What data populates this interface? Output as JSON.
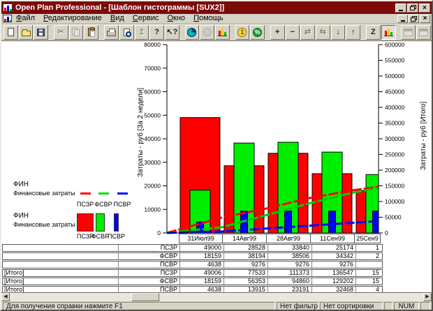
{
  "window": {
    "title": "Open Plan Professional - [Шаблон гистограммы [SUX2]]",
    "controls": {
      "minimize": "",
      "restore": "",
      "close": "×"
    }
  },
  "menu": {
    "items": [
      {
        "name": "menu-file",
        "label": "Файл"
      },
      {
        "name": "menu-edit",
        "label": "Редактирование"
      },
      {
        "name": "menu-view",
        "label": "Вид"
      },
      {
        "name": "menu-service",
        "label": "Сервис"
      },
      {
        "name": "menu-window",
        "label": "Окно"
      },
      {
        "name": "menu-help",
        "label": "Помощь"
      }
    ]
  },
  "toolbar": {
    "groups": [
      [
        {
          "name": "new-button",
          "icon": "page"
        },
        {
          "name": "open-button",
          "icon": "folder"
        },
        {
          "name": "save-button",
          "icon": "floppy"
        }
      ],
      [
        {
          "name": "cut-button",
          "glyph": "✂",
          "disabled": true
        },
        {
          "name": "copy-button",
          "icon": "copy",
          "disabled": true
        },
        {
          "name": "paste-button",
          "icon": "paste"
        }
      ],
      [
        {
          "name": "print-button",
          "icon": "printer"
        },
        {
          "name": "print-preview-button",
          "icon": "preview"
        },
        {
          "name": "levels-button",
          "glyph": "↥",
          "disabled": true
        },
        {
          "name": "help-button",
          "glyph": "?"
        },
        {
          "name": "context-help-button",
          "glyph": "↖?"
        }
      ],
      [
        {
          "name": "time-analysis-button",
          "icon": "clock"
        },
        {
          "name": "resource-button",
          "icon": "circle",
          "disabled": true
        },
        {
          "name": "histogram-button",
          "icon": "bars"
        }
      ],
      [
        {
          "name": "cost-button",
          "icon": "coin",
          "glyph": "1"
        },
        {
          "name": "percent-button",
          "icon": "percent",
          "glyph": "%"
        }
      ],
      [
        {
          "name": "add-button",
          "glyph": "+"
        },
        {
          "name": "remove-button",
          "glyph": "−"
        },
        {
          "name": "move-out-button",
          "glyph": "⇄",
          "disabled": true
        },
        {
          "name": "move-in-button",
          "glyph": "⇆",
          "disabled": true
        },
        {
          "name": "move-down-button",
          "glyph": "↓"
        },
        {
          "name": "move-up-button",
          "glyph": "↑"
        }
      ],
      [
        {
          "name": "network-view-button",
          "glyph": "Z"
        },
        {
          "name": "histogram-view-button",
          "icon": "bars",
          "pressed": true
        }
      ],
      [
        {
          "name": "tile-window-button",
          "icon": "window",
          "disabled": true
        },
        {
          "name": "cascade-window-button",
          "icon": "window",
          "disabled": true
        }
      ]
    ]
  },
  "legend": [
    {
      "title": "ФИН",
      "subtitle": "Финансовые затраты",
      "style": "line",
      "entries": [
        {
          "label": "ПСЗР",
          "color": "#ff0000"
        },
        {
          "label": "ФСВР",
          "color": "#00dd00"
        },
        {
          "label": "ПСВР",
          "color": "#0000ff"
        }
      ]
    },
    {
      "title": "ФИН",
      "subtitle": "Финансовые затраты",
      "style": "bar",
      "entries": [
        {
          "label": "ПСЗР",
          "color": "#ff0000"
        },
        {
          "label": "ФСВР",
          "color": "#00ee00"
        },
        {
          "label": "ПСВР",
          "color": "#0000ff"
        }
      ]
    }
  ],
  "chart_data": {
    "type": "bar+line",
    "categories": [
      "31Июл99",
      "14Авг99",
      "28Авг99",
      "11Сен99",
      "25Сен99"
    ],
    "bar_series": [
      {
        "id": "pszr",
        "name": "ПСЗР",
        "color": "#ff0000",
        "values": [
          49000,
          28528,
          33840,
          25174,
          18000
        ]
      },
      {
        "id": "fsvr",
        "name": "ФСВР",
        "color": "#00ee00",
        "values": [
          18159,
          38194,
          38506,
          34342,
          24800
        ]
      },
      {
        "id": "psvr",
        "name": "ПСВР",
        "color": "#0000ff",
        "values": [
          4638,
          9276,
          9276,
          9276,
          9276
        ]
      }
    ],
    "line_series": [
      {
        "id": "pszr-total",
        "name": "ПСЗР [Итого]",
        "color": "#ff0000",
        "values": [
          49006,
          77533,
          111373,
          136547,
          155000
        ]
      },
      {
        "id": "fsvr-total",
        "name": "ФСВР [Итого]",
        "color": "#00cc00",
        "values": [
          18159,
          56353,
          94860,
          129202,
          154000
        ]
      },
      {
        "id": "psvr-total",
        "name": "ПСВР [Итого]",
        "color": "#0000ff",
        "values": [
          4638,
          13915,
          23191,
          32468,
          41700
        ]
      }
    ],
    "left_axis": {
      "label": "Затраты - руб [За 2 недели]",
      "min": 0,
      "max": 80000,
      "step": 10000
    },
    "right_axis": {
      "label": "Затраты - руб [Итого]",
      "min": 0,
      "max": 600000,
      "step": 50000
    },
    "grid": false,
    "legend_position": "left"
  },
  "table": {
    "header": [
      "",
      "",
      "31Июл99",
      "14Авг99",
      "28Авг99",
      "11Сен99",
      "25Сен9"
    ],
    "rows": [
      [
        "",
        "ПСЗР",
        "49000",
        "28528",
        "33840",
        "25174",
        "1"
      ],
      [
        "",
        "ФСВР",
        "18159",
        "38194",
        "38506",
        "34342",
        "2"
      ],
      [
        "",
        "ПСВР",
        "4638",
        "9276",
        "9276",
        "9276",
        ""
      ],
      [
        "[Итого]",
        "ПСЗР",
        "49006",
        "77533",
        "111373",
        "136547",
        "15"
      ],
      [
        "[Итого]",
        "ФСВР",
        "18159",
        "56353",
        "94860",
        "129202",
        "15"
      ],
      [
        "[Итого]",
        "ПСВР",
        "4638",
        "13915",
        "23191",
        "32468",
        "4"
      ]
    ]
  },
  "statusbar": {
    "help": "Для получения справки нажмите F1",
    "filter": "Нет фильтра",
    "sort": "Нет сортировки",
    "num": "NUM"
  }
}
